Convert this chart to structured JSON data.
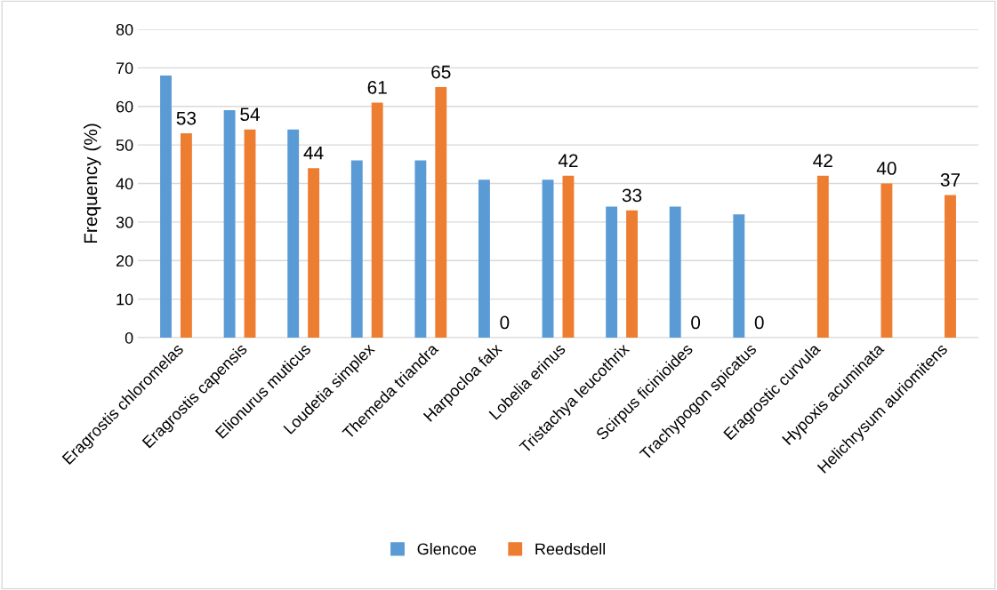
{
  "chart_data": {
    "type": "bar",
    "ylabel": "Frequency (%)",
    "categories": [
      "Eragrostis chloromelas",
      "Eragrostis capensis",
      "Elionurus muticus",
      "Loudetia simplex",
      "Themeda triandra",
      "Harpocloa falx",
      "Lobelia erinus",
      "Tristachya leucothrix",
      "Scirpus ficinioides",
      "Trachypogon spicatus",
      "Eragrostic curvula",
      "Hypoxis acuminata",
      "Helichrysum auriomitens"
    ],
    "series": [
      {
        "name": "Glencoe",
        "color": "#5b9bd5",
        "values": [
          68,
          59,
          54,
          46,
          46,
          41,
          41,
          34,
          34,
          32,
          0,
          0,
          0
        ]
      },
      {
        "name": "Reedsdell",
        "color": "#ed7d31",
        "values": [
          53,
          54,
          44,
          61,
          65,
          0,
          42,
          33,
          0,
          0,
          42,
          40,
          37
        ],
        "value_labels": [
          "53",
          "54",
          "44",
          "61",
          "65",
          "0",
          "42",
          "33",
          "0",
          "0",
          "42",
          "40",
          "37"
        ]
      }
    ],
    "ylim": [
      0,
      80
    ],
    "yticks": [
      0,
      10,
      20,
      30,
      40,
      50,
      60,
      70,
      80
    ],
    "grid": "y",
    "legend": "bottom"
  }
}
